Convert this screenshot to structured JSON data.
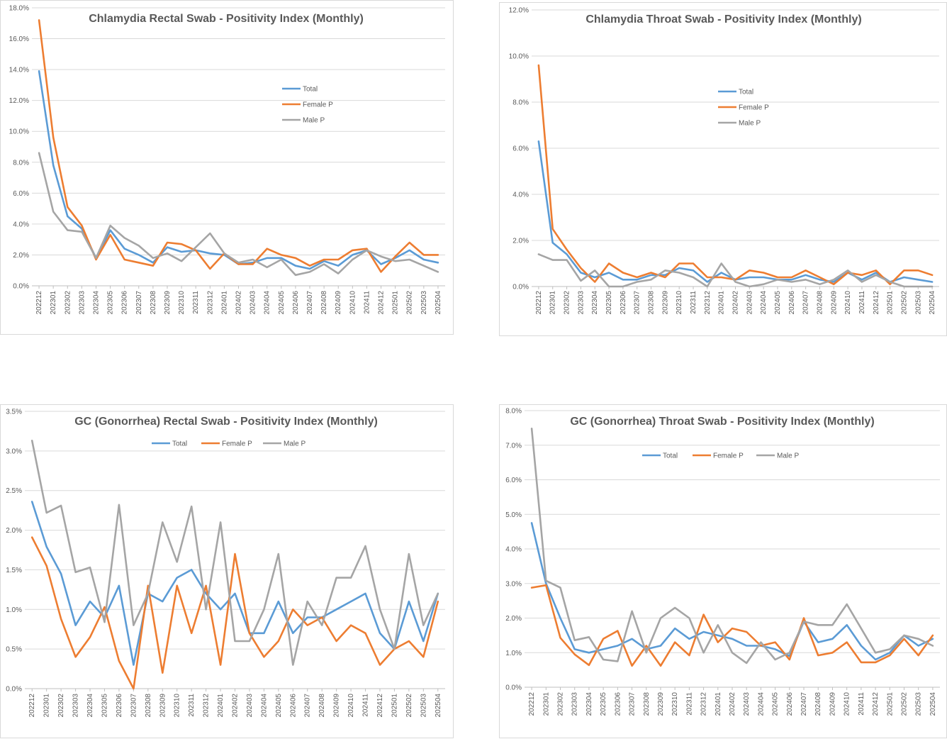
{
  "colors": {
    "total": "#5b9bd5",
    "female": "#ed7d31",
    "male": "#a5a5a5",
    "grid": "#d9d9d9",
    "text": "#595959"
  },
  "chart_data": [
    {
      "type": "line",
      "title": "Chlamydia   Rectal Swab - Positivity  Index (Monthly)",
      "xlabel": "",
      "ylabel": "",
      "ylim": [
        0,
        18
      ],
      "yticks": [
        "0.0%",
        "2.0%",
        "4.0%",
        "6.0%",
        "8.0%",
        "10.0%",
        "12.0%",
        "14.0%",
        "16.0%",
        "18.0%"
      ],
      "legend_position": "right-middle",
      "legend_layout": "vertical",
      "categories": [
        "202212",
        "202301",
        "202302",
        "202303",
        "202304",
        "202305",
        "202306",
        "202307",
        "202308",
        "202309",
        "202310",
        "202311",
        "202312",
        "202401",
        "202402",
        "202403",
        "202404",
        "202405",
        "202406",
        "202407",
        "202408",
        "202409",
        "202410",
        "202411",
        "202412",
        "202501",
        "202502",
        "202503",
        "202504"
      ],
      "series": [
        {
          "name": "Total",
          "color_key": "total",
          "values": [
            13.9,
            7.8,
            4.5,
            3.7,
            1.8,
            3.6,
            2.4,
            2.0,
            1.5,
            2.5,
            2.2,
            2.3,
            2.1,
            2.0,
            1.4,
            1.5,
            1.8,
            1.8,
            1.3,
            1.1,
            1.6,
            1.3,
            2.0,
            2.3,
            1.4,
            1.8,
            2.3,
            1.7,
            1.5
          ]
        },
        {
          "name": "Female P",
          "color_key": "female",
          "values": [
            17.2,
            9.6,
            5.1,
            3.9,
            1.7,
            3.3,
            1.7,
            1.5,
            1.3,
            2.8,
            2.7,
            2.3,
            1.1,
            2.1,
            1.4,
            1.4,
            2.4,
            2.0,
            1.8,
            1.3,
            1.7,
            1.7,
            2.3,
            2.4,
            0.9,
            1.9,
            2.8,
            2.0,
            2.0
          ]
        },
        {
          "name": "Male P",
          "color_key": "male",
          "values": [
            8.6,
            4.8,
            3.6,
            3.5,
            1.8,
            3.9,
            3.1,
            2.6,
            1.8,
            2.1,
            1.6,
            2.5,
            3.4,
            2.1,
            1.5,
            1.7,
            1.2,
            1.7,
            0.7,
            0.9,
            1.4,
            0.8,
            1.7,
            2.3,
            1.9,
            1.6,
            1.7,
            1.3,
            0.9
          ]
        }
      ]
    },
    {
      "type": "line",
      "title": "Chlamydia  Throat Swab - Positivity Index (Monthly)",
      "xlabel": "",
      "ylabel": "",
      "ylim": [
        0,
        12
      ],
      "yticks": [
        "0.0%",
        "2.0%",
        "4.0%",
        "6.0%",
        "8.0%",
        "10.0%",
        "12.0%"
      ],
      "legend_position": "right-middle",
      "legend_layout": "vertical",
      "categories": [
        "202212",
        "202301",
        "202302",
        "202303",
        "202304",
        "202305",
        "202306",
        "202307",
        "202308",
        "202309",
        "202310",
        "202311",
        "202312",
        "202401",
        "202402",
        "202403",
        "202404",
        "202405",
        "202406",
        "202407",
        "202408",
        "202409",
        "202410",
        "202411",
        "202412",
        "202501",
        "202502",
        "202503",
        "202504"
      ],
      "series": [
        {
          "name": "Total",
          "color_key": "total",
          "values": [
            6.3,
            1.9,
            1.4,
            0.6,
            0.4,
            0.6,
            0.3,
            0.3,
            0.5,
            0.5,
            0.8,
            0.7,
            0.2,
            0.6,
            0.3,
            0.4,
            0.4,
            0.3,
            0.3,
            0.5,
            0.3,
            0.2,
            0.6,
            0.3,
            0.6,
            0.2,
            0.4,
            0.3,
            0.2
          ]
        },
        {
          "name": "Female P",
          "color_key": "female",
          "values": [
            9.6,
            2.5,
            1.6,
            0.8,
            0.2,
            1.0,
            0.6,
            0.4,
            0.6,
            0.4,
            1.0,
            1.0,
            0.4,
            0.4,
            0.3,
            0.7,
            0.6,
            0.4,
            0.4,
            0.7,
            0.4,
            0.1,
            0.6,
            0.5,
            0.7,
            0.1,
            0.7,
            0.7,
            0.5
          ]
        },
        {
          "name": "Male P",
          "color_key": "male",
          "values": [
            1.4,
            1.15,
            1.15,
            0.25,
            0.7,
            0.0,
            0.0,
            0.2,
            0.3,
            0.7,
            0.6,
            0.4,
            0.0,
            1.0,
            0.2,
            0.0,
            0.1,
            0.3,
            0.2,
            0.3,
            0.1,
            0.3,
            0.7,
            0.2,
            0.5,
            0.2,
            0.0,
            0.0,
            0.0
          ]
        }
      ]
    },
    {
      "type": "line",
      "title": "GC (Gonorrhea) Rectal Swab - Positivity Index (Monthly)",
      "xlabel": "",
      "ylabel": "",
      "ylim": [
        0,
        3.5
      ],
      "yticks": [
        "0.0%",
        "0.5%",
        "1.0%",
        "1.5%",
        "2.0%",
        "2.5%",
        "3.0%",
        "3.5%"
      ],
      "legend_position": "top",
      "legend_layout": "horizontal",
      "categories": [
        "202212",
        "202301",
        "202302",
        "202303",
        "202304",
        "202305",
        "202306",
        "202307",
        "202308",
        "202309",
        "202310",
        "202311",
        "202312",
        "202401",
        "202402",
        "202403",
        "202404",
        "202405",
        "202406",
        "202407",
        "202408",
        "202409",
        "202410",
        "202411",
        "202412",
        "202501",
        "202502",
        "202503",
        "202504"
      ],
      "series": [
        {
          "name": "Total",
          "color_key": "total",
          "values": [
            2.36,
            1.79,
            1.45,
            0.8,
            1.1,
            0.9,
            1.3,
            0.3,
            1.2,
            1.1,
            1.4,
            1.5,
            1.2,
            1.0,
            1.2,
            0.7,
            0.7,
            1.1,
            0.7,
            0.9,
            0.9,
            1.0,
            1.1,
            1.2,
            0.7,
            0.5,
            1.1,
            0.6,
            1.2
          ]
        },
        {
          "name": "Female P",
          "color_key": "female",
          "values": [
            1.91,
            1.55,
            0.88,
            0.4,
            0.65,
            1.03,
            0.35,
            0.0,
            1.3,
            0.2,
            1.3,
            0.7,
            1.3,
            0.3,
            1.7,
            0.7,
            0.4,
            0.6,
            1.0,
            0.8,
            0.9,
            0.6,
            0.8,
            0.7,
            0.3,
            0.5,
            0.6,
            0.4,
            1.1
          ]
        },
        {
          "name": "Male P",
          "color_key": "male",
          "values": [
            3.13,
            2.22,
            2.31,
            1.47,
            1.53,
            0.84,
            2.32,
            0.8,
            1.2,
            2.1,
            1.6,
            2.3,
            1.0,
            2.1,
            0.6,
            0.6,
            1.0,
            1.7,
            0.3,
            1.1,
            0.8,
            1.4,
            1.4,
            1.8,
            1.0,
            0.5,
            1.7,
            0.8,
            1.2
          ]
        }
      ]
    },
    {
      "type": "line",
      "title": "GC (Gonorrhea) Throat Swab - Positivity Index (Monthly)",
      "xlabel": "",
      "ylabel": "",
      "ylim": [
        0,
        8
      ],
      "yticks": [
        "0.0%",
        "1.0%",
        "2.0%",
        "3.0%",
        "4.0%",
        "5.0%",
        "6.0%",
        "7.0%",
        "8.0%"
      ],
      "legend_position": "top",
      "legend_layout": "horizontal",
      "categories": [
        "202212",
        "202301",
        "202302",
        "202303",
        "202304",
        "202305",
        "202306",
        "202307",
        "202308",
        "202309",
        "202310",
        "202311",
        "202312",
        "202401",
        "202402",
        "202403",
        "202404",
        "202405",
        "202406",
        "202407",
        "202408",
        "202409",
        "202410",
        "202411",
        "202412",
        "202501",
        "202502",
        "202503",
        "202504"
      ],
      "series": [
        {
          "name": "Total",
          "color_key": "total",
          "values": [
            4.75,
            3.0,
            2.0,
            1.1,
            1.0,
            1.1,
            1.2,
            1.4,
            1.1,
            1.2,
            1.7,
            1.4,
            1.6,
            1.5,
            1.4,
            1.2,
            1.2,
            1.1,
            0.9,
            1.9,
            1.3,
            1.4,
            1.8,
            1.2,
            0.8,
            1.0,
            1.5,
            1.2,
            1.4
          ]
        },
        {
          "name": "Female P",
          "color_key": "female",
          "values": [
            2.88,
            2.95,
            1.43,
            0.95,
            0.64,
            1.4,
            1.63,
            0.62,
            1.2,
            0.62,
            1.3,
            0.92,
            2.1,
            1.3,
            1.7,
            1.6,
            1.2,
            1.3,
            0.8,
            2.0,
            0.92,
            1.0,
            1.3,
            0.72,
            0.72,
            0.92,
            1.4,
            0.92,
            1.5
          ]
        },
        {
          "name": "Male P",
          "color_key": "male",
          "values": [
            7.48,
            3.08,
            2.88,
            1.36,
            1.45,
            0.8,
            0.75,
            2.2,
            1.0,
            2.0,
            2.3,
            2.0,
            1.0,
            1.8,
            1.0,
            0.7,
            1.3,
            0.8,
            1.0,
            1.9,
            1.8,
            1.8,
            2.4,
            1.7,
            1.0,
            1.1,
            1.5,
            1.4,
            1.2
          ]
        }
      ]
    }
  ]
}
